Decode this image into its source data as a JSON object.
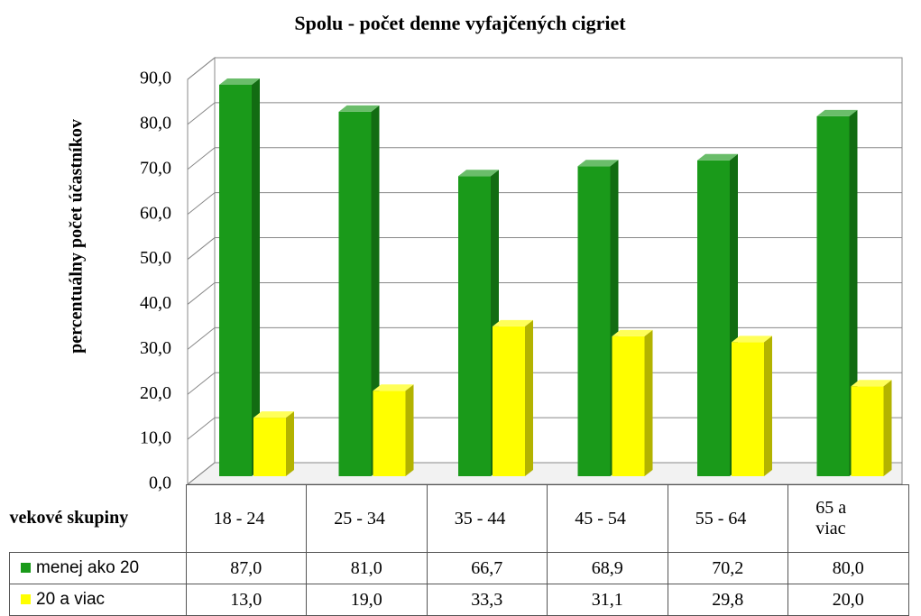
{
  "chart_data": {
    "type": "bar3d",
    "title": "Spolu - počet denne vyfajčených cigriet",
    "ylabel": "percentuálny počet účastníkov",
    "xlabel": "vekové skupiny",
    "categories": [
      "18 - 24",
      "25 - 34",
      "35 - 44",
      "45 - 54",
      "55 - 64",
      "65 a viac"
    ],
    "series": [
      {
        "name": "menej ako 20",
        "color": "#1a9a1a",
        "values": [
          87.0,
          81.0,
          66.7,
          68.9,
          70.2,
          80.0
        ],
        "value_labels": [
          "87,0",
          "81,0",
          "66,7",
          "68,9",
          "70,2",
          "80,0"
        ]
      },
      {
        "name": "20 a viac",
        "color": "#ffff00",
        "values": [
          13.0,
          19.0,
          33.3,
          31.1,
          29.8,
          20.0
        ],
        "value_labels": [
          "13,0",
          "19,0",
          "33,3",
          "31,1",
          "29,8",
          "20,0"
        ]
      }
    ],
    "ylim": [
      0,
      90
    ],
    "yticks": [
      {
        "value": 0,
        "label": "0,0"
      },
      {
        "value": 10,
        "label": "10,0"
      },
      {
        "value": 20,
        "label": "20,0"
      },
      {
        "value": 30,
        "label": "30,0"
      },
      {
        "value": 40,
        "label": "40,0"
      },
      {
        "value": 50,
        "label": "50,0"
      },
      {
        "value": 60,
        "label": "60,0"
      },
      {
        "value": 70,
        "label": "70,0"
      },
      {
        "value": 80,
        "label": "80,0"
      },
      {
        "value": 90,
        "label": "90,0"
      }
    ],
    "grid": true
  }
}
